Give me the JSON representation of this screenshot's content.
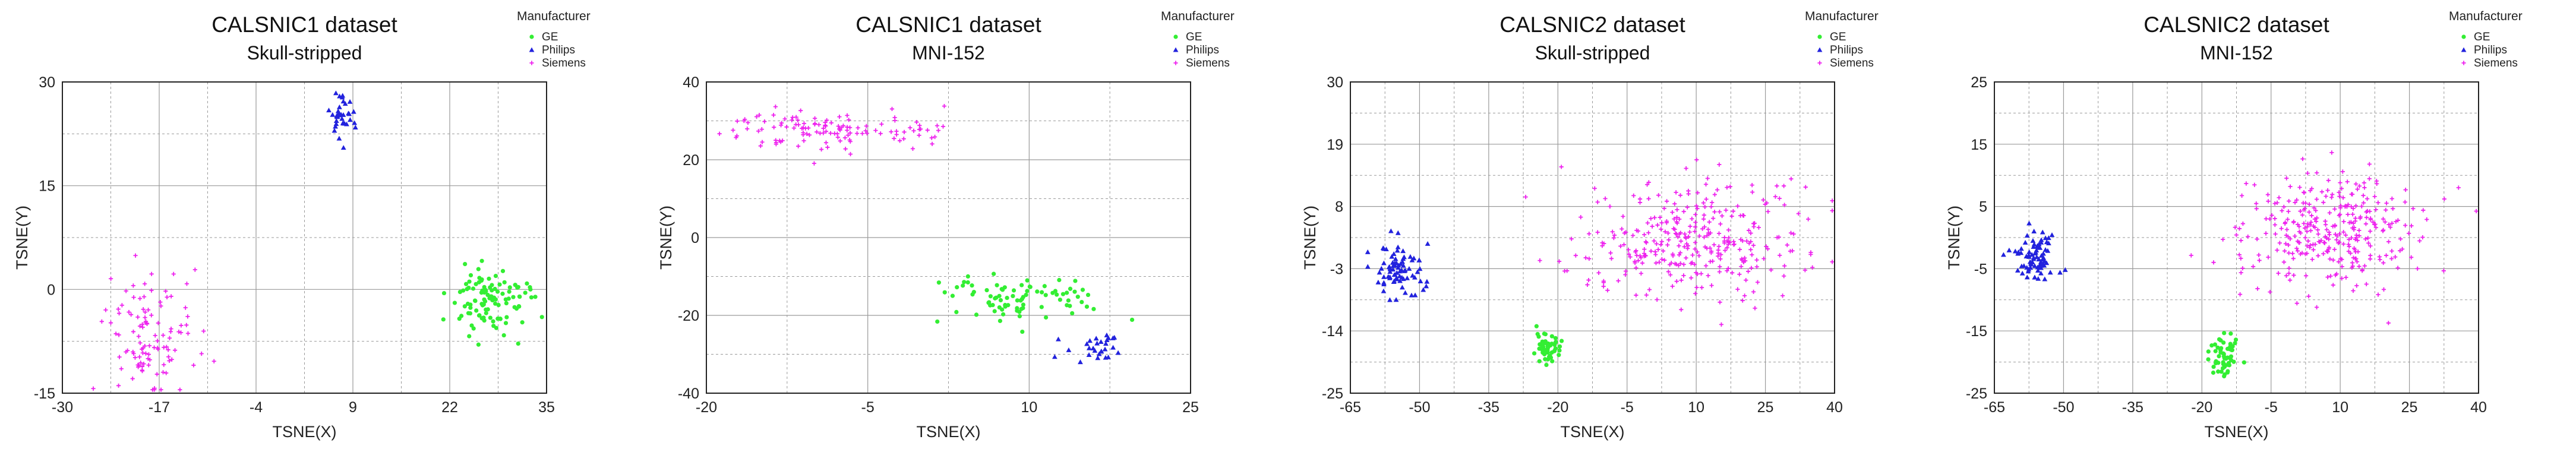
{
  "chart_data": [
    {
      "type": "scatter",
      "title": "CALSNIC1 dataset",
      "subtitle": "Skull-stripped",
      "xlabel": "TSNE(X)",
      "ylabel": "TSNE(Y)",
      "xlim": [
        -30,
        35
      ],
      "ylim": [
        -15,
        30
      ],
      "xticks": [
        -30,
        -17,
        -4,
        9,
        22,
        35
      ],
      "yticks": [
        -15,
        0,
        15,
        30
      ],
      "xtick_labels": [
        "-30",
        "-17",
        "-4",
        "9",
        "22",
        "35"
      ],
      "ytick_labels": [
        "-15",
        "0",
        "15",
        "30"
      ],
      "grid": true,
      "legend_title": "Manufacturer",
      "legend_position": "top-right outside",
      "series": [
        {
          "name": "GE",
          "color": "#33ee33",
          "marker": "circle",
          "clusters": [
            {
              "cx": 27,
              "cy": -1.5,
              "sx": 5,
              "sy": 4.5,
              "n": 110
            }
          ]
        },
        {
          "name": "Philips",
          "color": "#2222dd",
          "marker": "triangle",
          "clusters": [
            {
              "cx": 7.5,
              "cy": 25,
              "sx": 1.5,
              "sy": 3,
              "n": 35
            }
          ]
        },
        {
          "name": "Siemens",
          "color": "#ee22ee",
          "marker": "plus",
          "clusters": [
            {
              "cx": -18,
              "cy": -6,
              "sx": 5.5,
              "sy": 8.5,
              "n": 110
            }
          ]
        }
      ]
    },
    {
      "type": "scatter",
      "title": "CALSNIC1 dataset",
      "subtitle": "MNI-152",
      "xlabel": "TSNE(X)",
      "ylabel": "TSNE(Y)",
      "xlim": [
        -20,
        25
      ],
      "ylim": [
        -40,
        40
      ],
      "xticks": [
        -20,
        -5,
        10,
        25
      ],
      "yticks": [
        -40,
        -20,
        0,
        20,
        40
      ],
      "xtick_labels": [
        "-20",
        "-5",
        "10",
        "25"
      ],
      "ytick_labels": [
        "-40",
        "-20",
        "0",
        "20",
        "40"
      ],
      "grid": true,
      "legend_title": "Manufacturer",
      "legend_position": "top-right outside",
      "series": [
        {
          "name": "GE",
          "color": "#33ee33",
          "marker": "circle",
          "clusters": [
            {
              "cx": 9,
              "cy": -16,
              "sx": 7,
              "sy": 6,
              "n": 85
            }
          ]
        },
        {
          "name": "Philips",
          "color": "#2222dd",
          "marker": "triangle",
          "clusters": [
            {
              "cx": 16,
              "cy": -28,
              "sx": 2.5,
              "sy": 3,
              "n": 28
            }
          ]
        },
        {
          "name": "Siemens",
          "color": "#ee22ee",
          "marker": "plus",
          "clusters": [
            {
              "cx": -10,
              "cy": 28,
              "sx": 8,
              "sy": 5,
              "n": 110
            },
            {
              "cx": 0,
              "cy": 27,
              "sx": 2.2,
              "sy": 2.5,
              "n": 14
            }
          ]
        }
      ]
    },
    {
      "type": "scatter",
      "title": "CALSNIC2 dataset",
      "subtitle": "Skull-stripped",
      "xlabel": "TSNE(X)",
      "ylabel": "TSNE(Y)",
      "xlim": [
        -65,
        40
      ],
      "ylim": [
        -25,
        30
      ],
      "xticks": [
        -65,
        -50,
        -35,
        -20,
        -5,
        10,
        25,
        40
      ],
      "yticks": [
        -25,
        -14,
        -3,
        8,
        19,
        30
      ],
      "xtick_labels": [
        "-65",
        "-50",
        "-35",
        "-20",
        "-5",
        "10",
        "25",
        "40"
      ],
      "ytick_labels": [
        "-25",
        "-14",
        "-3",
        "8",
        "19",
        "30"
      ],
      "grid": true,
      "legend_title": "Manufacturer",
      "legend_position": "top-right outside",
      "series": [
        {
          "name": "GE",
          "color": "#33ee33",
          "marker": "circle",
          "clusters": [
            {
              "cx": -22,
              "cy": -17,
              "sx": 2.5,
              "sy": 2.5,
              "n": 55
            }
          ]
        },
        {
          "name": "Philips",
          "color": "#2222dd",
          "marker": "triangle",
          "clusters": [
            {
              "cx": -55,
              "cy": -3,
              "sx": 5,
              "sy": 4,
              "n": 80
            }
          ]
        },
        {
          "name": "Siemens",
          "color": "#ee22ee",
          "marker": "plus",
          "clusters": [
            {
              "cx": 10,
              "cy": 2,
              "sx": 22,
              "sy": 10,
              "n": 330
            }
          ]
        }
      ]
    },
    {
      "type": "scatter",
      "title": "CALSNIC2 dataset",
      "subtitle": "MNI-152",
      "xlabel": "TSNE(X)",
      "ylabel": "TSNE(Y)",
      "xlim": [
        -65,
        40
      ],
      "ylim": [
        -25,
        25
      ],
      "xticks": [
        -65,
        -50,
        -35,
        -20,
        -5,
        10,
        25,
        40
      ],
      "yticks": [
        -25,
        -15,
        -5,
        5,
        15,
        25
      ],
      "xtick_labels": [
        "-65",
        "-50",
        "-35",
        "-20",
        "-5",
        "10",
        "25",
        "40"
      ],
      "ytick_labels": [
        "-25",
        "-15",
        "-5",
        "5",
        "15",
        "25"
      ],
      "grid": true,
      "legend_title": "Manufacturer",
      "legend_position": "top-right outside",
      "series": [
        {
          "name": "GE",
          "color": "#33ee33",
          "marker": "circle",
          "clusters": [
            {
              "cx": -15,
              "cy": -19,
              "sx": 3,
              "sy": 3,
              "n": 55
            }
          ]
        },
        {
          "name": "Philips",
          "color": "#2222dd",
          "marker": "triangle",
          "clusters": [
            {
              "cx": -56,
              "cy": -3,
              "sx": 4.5,
              "sy": 4,
              "n": 80
            }
          ]
        },
        {
          "name": "Siemens",
          "color": "#ee22ee",
          "marker": "plus",
          "clusters": [
            {
              "cx": 8,
              "cy": 1,
              "sx": 17,
              "sy": 9,
              "n": 330
            }
          ]
        }
      ]
    }
  ]
}
